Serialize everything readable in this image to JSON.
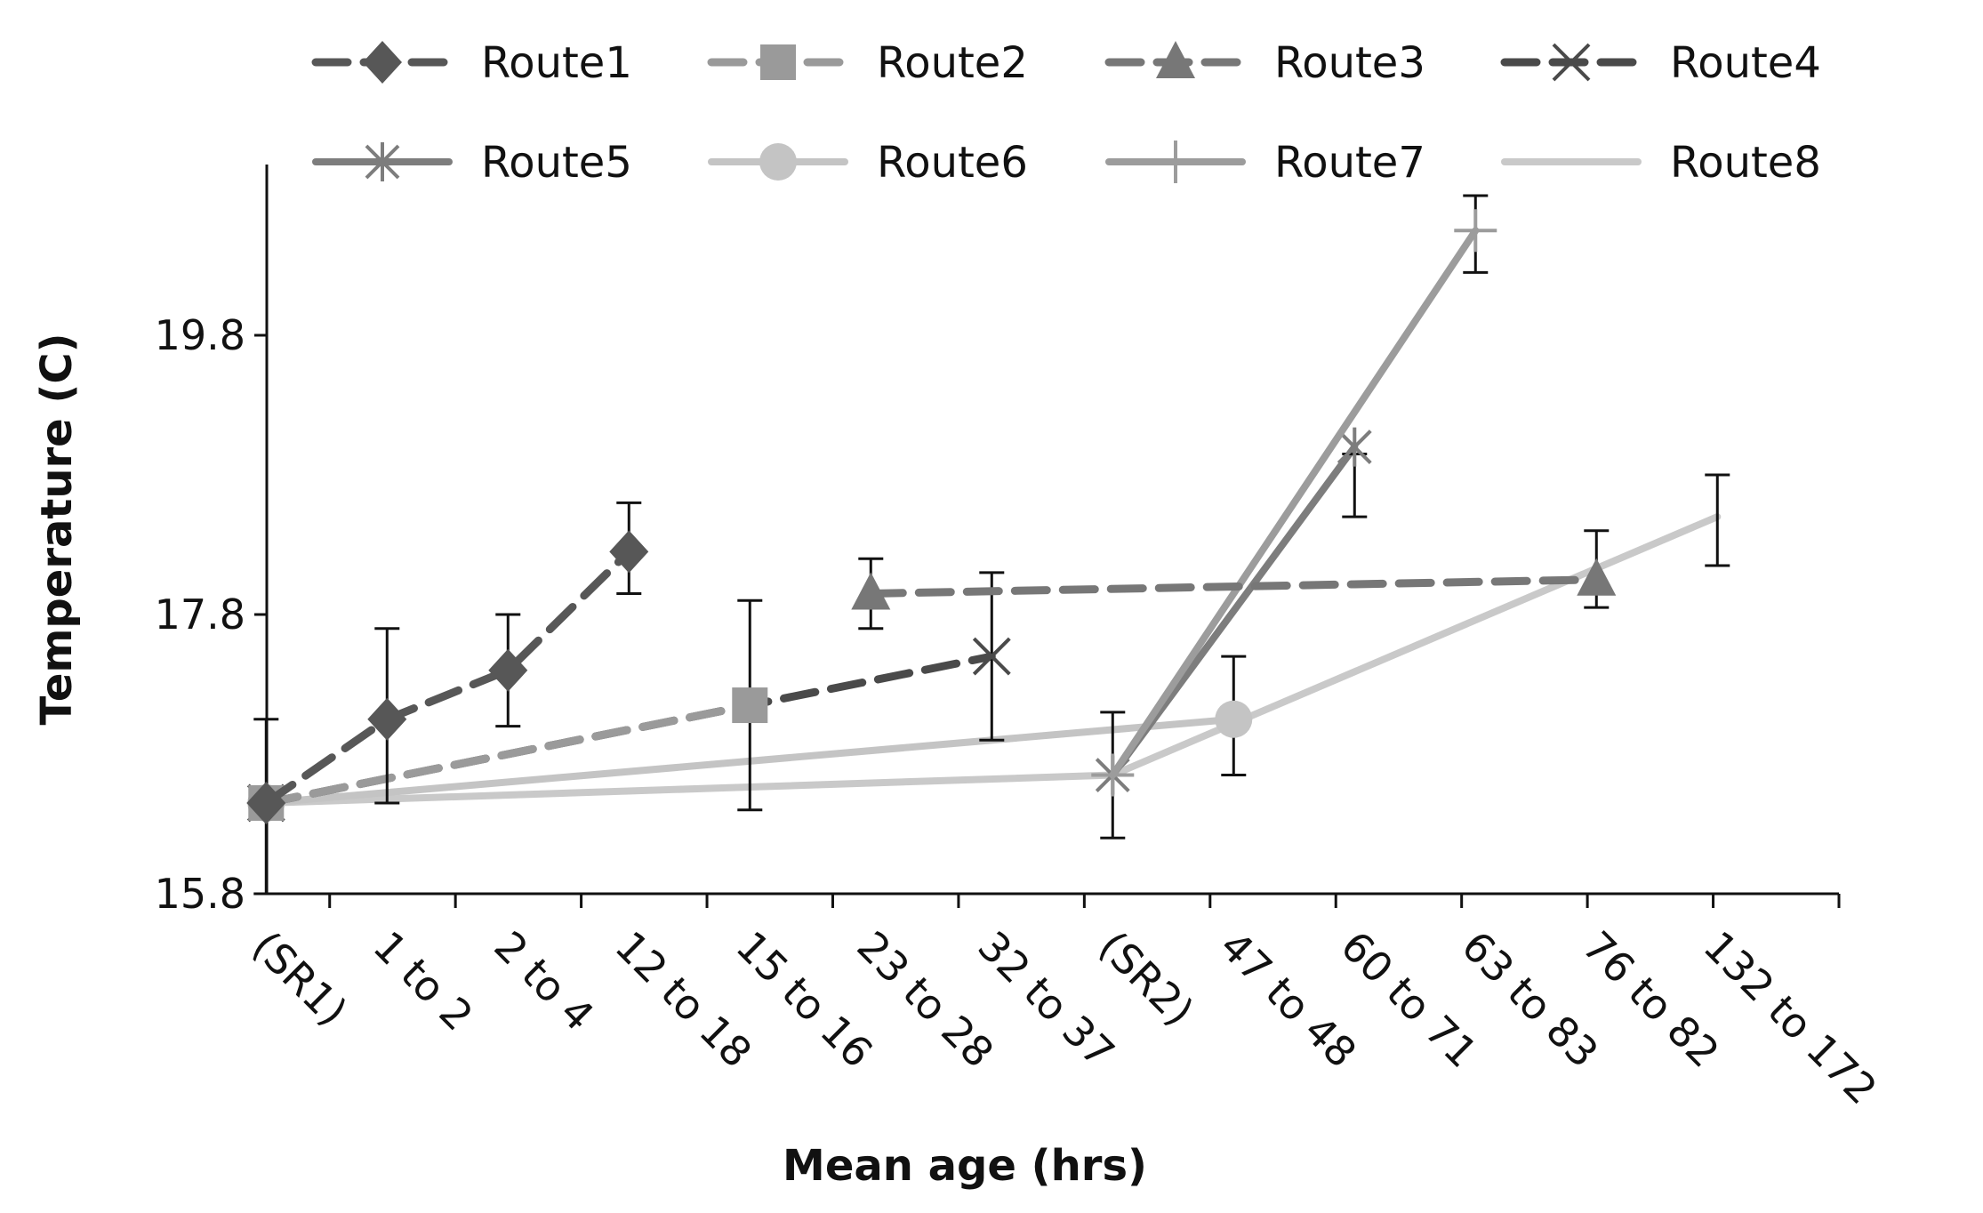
{
  "chart_data": {
    "type": "line",
    "title": "",
    "xlabel": "Mean age (hrs)",
    "ylabel": "Temperature (C)",
    "categories": [
      "(SR1)",
      "1 to 2",
      "2 to 4",
      "12 to 18",
      "15 to 16",
      "23 to 28",
      "32 to 37",
      "(SR2)",
      "47 to 48",
      "60 to 71",
      "63 to 83",
      "76 to 82",
      "132 to 172"
    ],
    "ylim": [
      15.8,
      21.0
    ],
    "yticks": [
      15.8,
      17.8,
      19.8
    ],
    "yticklabels": [
      "15.8",
      "17.8",
      "19.8"
    ],
    "legend_position": "top",
    "series": [
      {
        "name": "Route1",
        "color": "#575757",
        "dash": true,
        "marker": "diamond",
        "points": [
          [
            0,
            16.45
          ],
          [
            1,
            17.05
          ],
          [
            2,
            17.4
          ],
          [
            3,
            18.25
          ]
        ],
        "errors": [
          null,
          [
            16.45,
            17.7
          ],
          [
            17.0,
            17.8
          ],
          [
            17.95,
            18.6
          ]
        ]
      },
      {
        "name": "Route2",
        "color": "#9a9a9a",
        "dash": true,
        "marker": "square",
        "points": [
          [
            0,
            16.45
          ],
          [
            4,
            17.15
          ]
        ],
        "errors": [
          [
            15.8,
            17.05
          ],
          [
            16.4,
            17.9
          ]
        ]
      },
      {
        "name": "Route3",
        "color": "#777777",
        "dash": true,
        "marker": "triangle",
        "points": [
          [
            5,
            17.95
          ],
          [
            11,
            18.05
          ]
        ],
        "errors": [
          [
            17.7,
            18.2
          ],
          [
            17.85,
            18.4
          ]
        ]
      },
      {
        "name": "Route4",
        "color": "#4a4a4a",
        "dash": true,
        "marker": "x",
        "points": [
          [
            0,
            16.45
          ],
          [
            6,
            17.5
          ]
        ],
        "errors": [
          null,
          [
            16.9,
            18.1
          ]
        ]
      },
      {
        "name": "Route5",
        "color": "#7d7d7d",
        "dash": false,
        "marker": "asterisk",
        "points": [
          [
            7,
            16.65
          ],
          [
            9,
            19.0
          ]
        ],
        "errors": [
          [
            16.2,
            17.1
          ],
          [
            18.5,
            18.95
          ]
        ]
      },
      {
        "name": "Route6",
        "color": "#c4c4c4",
        "dash": false,
        "marker": "circle",
        "points": [
          [
            0,
            16.45
          ],
          [
            8,
            17.05
          ]
        ],
        "errors": [
          null,
          [
            16.65,
            17.5
          ]
        ]
      },
      {
        "name": "Route7",
        "color": "#9c9c9c",
        "dash": false,
        "marker": "plus",
        "points": [
          [
            7,
            16.65
          ],
          [
            10,
            20.55
          ]
        ],
        "errors": [
          null,
          [
            20.25,
            20.8
          ]
        ]
      },
      {
        "name": "Route8",
        "color": "#c9c9c9",
        "dash": false,
        "marker": "none",
        "points": [
          [
            0,
            16.45
          ],
          [
            7,
            16.65
          ],
          [
            12,
            18.5
          ]
        ],
        "errors": [
          null,
          null,
          [
            18.15,
            18.8
          ]
        ]
      }
    ]
  }
}
